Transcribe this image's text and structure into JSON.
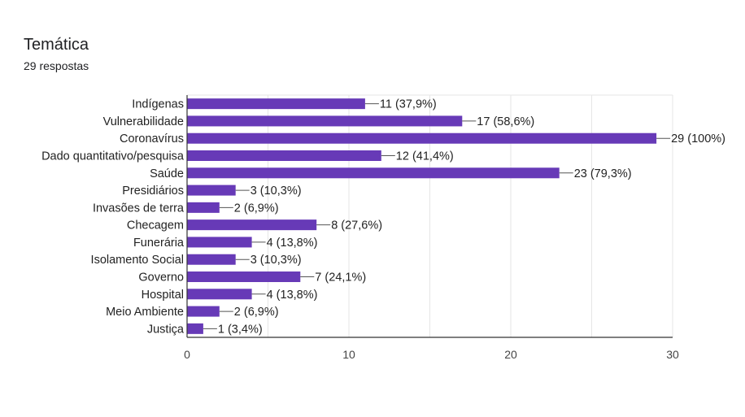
{
  "header": {
    "title": "Temática",
    "responses": "29 respostas"
  },
  "colors": {
    "bar": "#673ab7",
    "grid": "#e6e6e6",
    "axis": "#333333"
  },
  "chart_data": {
    "type": "bar",
    "orientation": "horizontal",
    "categories": [
      "Indígenas",
      "Vulnerabilidade",
      "Coronavírus",
      "Dado quantitativo/pesquisa",
      "Saúde",
      "Presidiários",
      "Invasões de terra",
      "Checagem",
      "Funerária",
      "Isolamento Social",
      "Governo",
      "Hospital",
      "Meio Ambiente",
      "Justiça"
    ],
    "values": [
      11,
      17,
      29,
      12,
      23,
      3,
      2,
      8,
      4,
      3,
      7,
      4,
      2,
      1
    ],
    "data_labels": [
      "11 (37,9%)",
      "17 (58,6%)",
      "29 (100%)",
      "12 (41,4%)",
      "23 (79,3%)",
      "3 (10,3%)",
      "2 (6,9%)",
      "8 (27,6%)",
      "4 (13,8%)",
      "3 (10,3%)",
      "7 (24,1%)",
      "4 (13,8%)",
      "2 (6,9%)",
      "1 (3,4%)"
    ],
    "xlim": [
      0,
      30
    ],
    "xticks": [
      0,
      10,
      20,
      30
    ],
    "grid": true
  }
}
